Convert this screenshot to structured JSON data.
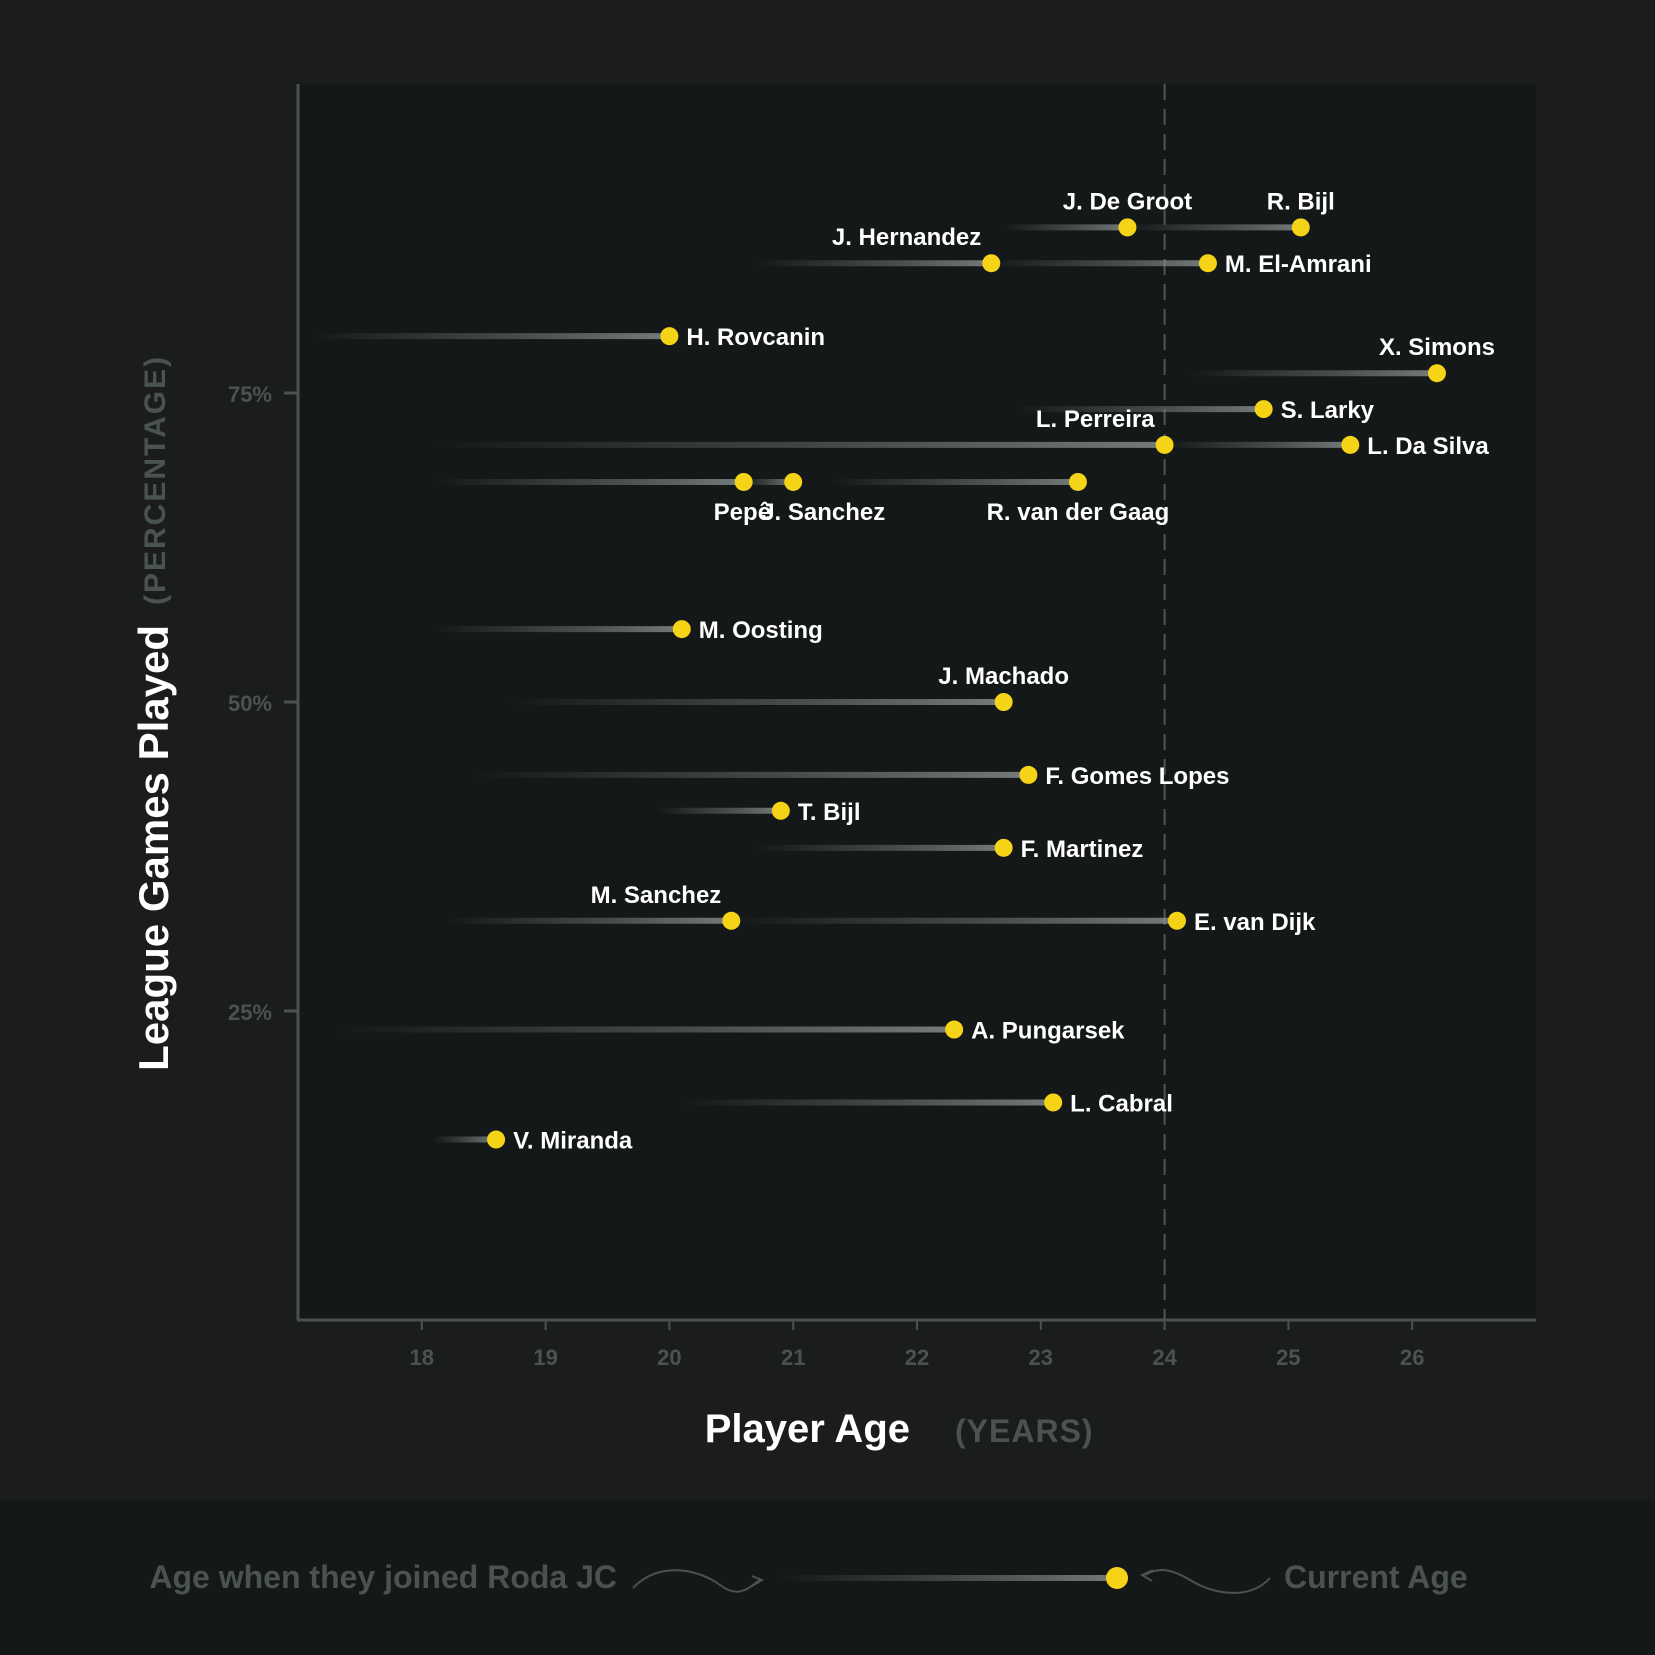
{
  "chart_data": {
    "type": "scatter",
    "title": "",
    "xlabel": "Player Age",
    "xlabel_unit": "(YEARS)",
    "ylabel": "League Games Played",
    "ylabel_unit": "(PERCENTAGE)",
    "xlim": [
      17,
      27
    ],
    "ylim": [
      0,
      100
    ],
    "x_ticks": [
      18,
      19,
      20,
      21,
      22,
      23,
      24,
      25,
      26
    ],
    "y_ticks": [
      25,
      50,
      75
    ],
    "y_tick_format": "%",
    "reference_line": {
      "x": 24,
      "style": "dashed"
    },
    "colors": {
      "background": "#1b1d1d",
      "plot": "#141818",
      "footer": "#151818",
      "dot": "#f5d316",
      "axis": "#4a5352",
      "tick_text": "#4a5352",
      "label_text": "#ffffff"
    },
    "series": [
      {
        "name": "J. De Groot",
        "joined_age": 22.7,
        "current_age": 23.7,
        "games_pct": 88.4,
        "label_pos": "above"
      },
      {
        "name": "R. Bijl",
        "joined_age": 23.7,
        "current_age": 25.1,
        "games_pct": 88.4,
        "label_pos": "above"
      },
      {
        "name": "J. Hernandez",
        "joined_age": 20.7,
        "current_age": 22.6,
        "games_pct": 85.5,
        "label_pos": "above-left"
      },
      {
        "name": "M. El-Amrani",
        "joined_age": 22.6,
        "current_age": 24.35,
        "games_pct": 85.5,
        "label_pos": "right"
      },
      {
        "name": "H. Rovcanin",
        "joined_age": 17.1,
        "current_age": 20.0,
        "games_pct": 79.6,
        "label_pos": "right"
      },
      {
        "name": "X. Simons",
        "joined_age": 24.2,
        "current_age": 26.2,
        "games_pct": 76.6,
        "label_pos": "above"
      },
      {
        "name": "S. Larky",
        "joined_age": 22.8,
        "current_age": 24.8,
        "games_pct": 73.7,
        "label_pos": "right"
      },
      {
        "name": "L. Perreira",
        "joined_age": 18.1,
        "current_age": 24.0,
        "games_pct": 70.8,
        "label_pos": "above-left"
      },
      {
        "name": "L. Da Silva",
        "joined_age": 24.0,
        "current_age": 25.5,
        "games_pct": 70.8,
        "label_pos": "right"
      },
      {
        "name": "Pepê",
        "joined_age": 18.1,
        "current_age": 20.6,
        "games_pct": 67.8,
        "label_pos": "below"
      },
      {
        "name": "J. Sanchez",
        "joined_age": 20.6,
        "current_age": 21.0,
        "games_pct": 67.8,
        "label_pos": "below"
      },
      {
        "name": "R. van der Gaag",
        "joined_age": 21.3,
        "current_age": 23.3,
        "games_pct": 67.8,
        "label_pos": "below"
      },
      {
        "name": "M. Oosting",
        "joined_age": 18.1,
        "current_age": 20.1,
        "games_pct": 55.9,
        "label_pos": "right"
      },
      {
        "name": "J. Machado",
        "joined_age": 18.7,
        "current_age": 22.7,
        "games_pct": 50.0,
        "label_pos": "above"
      },
      {
        "name": "F. Gomes Lopes",
        "joined_age": 18.4,
        "current_age": 22.9,
        "games_pct": 44.1,
        "label_pos": "right"
      },
      {
        "name": "T. Bijl",
        "joined_age": 19.9,
        "current_age": 20.9,
        "games_pct": 41.2,
        "label_pos": "right"
      },
      {
        "name": "F. Martinez",
        "joined_age": 20.7,
        "current_age": 22.7,
        "games_pct": 38.2,
        "label_pos": "right"
      },
      {
        "name": "M. Sanchez",
        "joined_age": 18.2,
        "current_age": 20.5,
        "games_pct": 32.3,
        "label_pos": "above-left"
      },
      {
        "name": "E. van Dijk",
        "joined_age": 20.5,
        "current_age": 24.1,
        "games_pct": 32.3,
        "label_pos": "right"
      },
      {
        "name": "A. Pungarsek",
        "joined_age": 17.3,
        "current_age": 22.3,
        "games_pct": 23.5,
        "label_pos": "right"
      },
      {
        "name": "L. Cabral",
        "joined_age": 20.1,
        "current_age": 23.1,
        "games_pct": 17.6,
        "label_pos": "right"
      },
      {
        "name": "V. Miranda",
        "joined_age": 18.1,
        "current_age": 18.6,
        "games_pct": 14.6,
        "label_pos": "right"
      }
    ]
  },
  "legend": {
    "joined_label": "Age when they joined Roda JC",
    "current_label": "Current Age"
  }
}
